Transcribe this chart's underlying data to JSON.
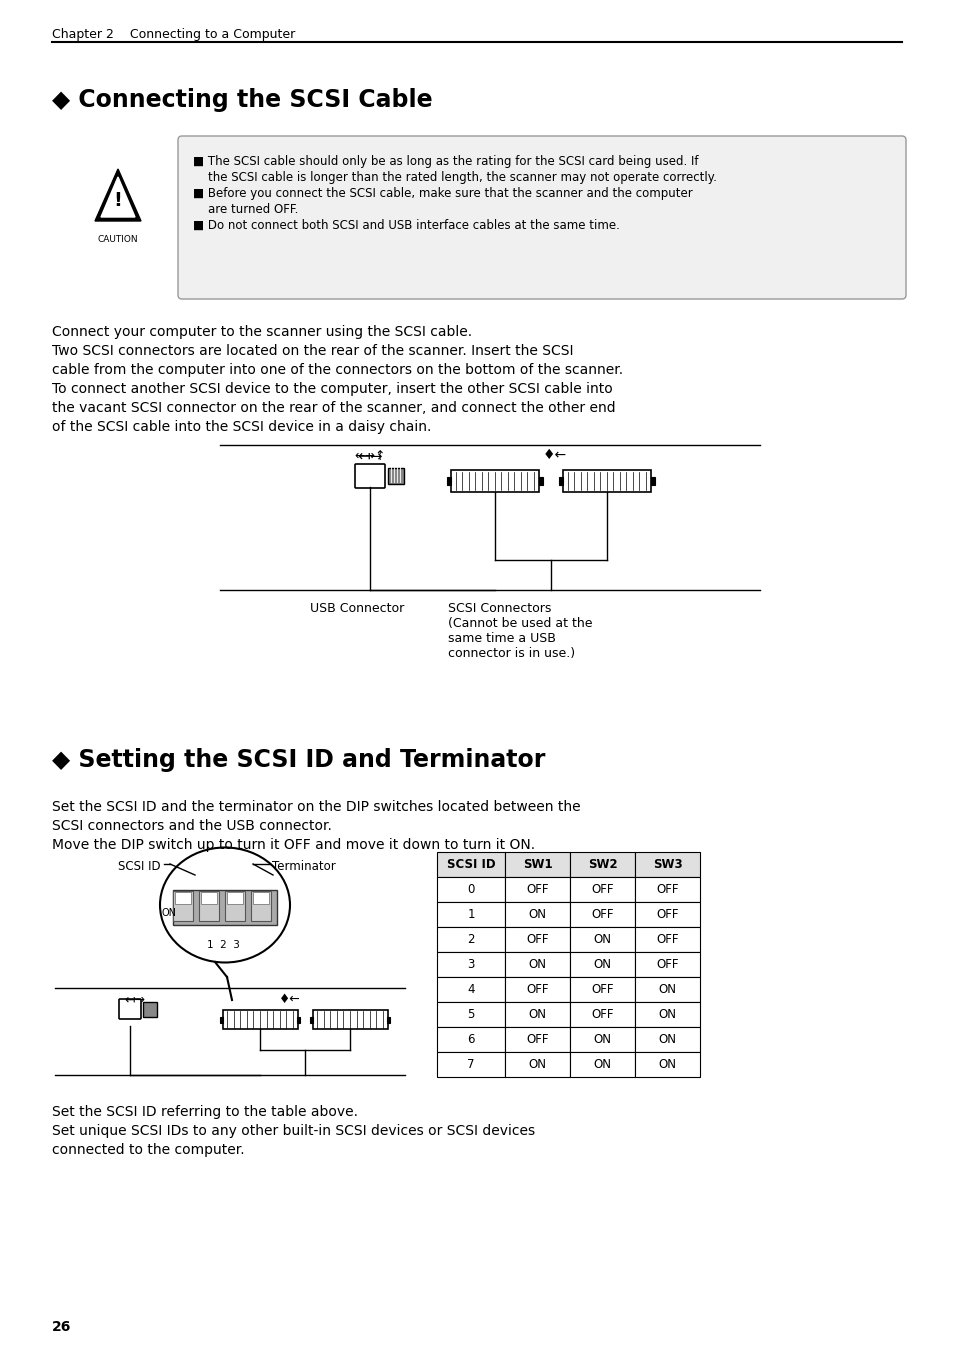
{
  "page_num": "26",
  "chapter_header": "Chapter 2    Connecting to a Computer",
  "section1_title": "◆ Connecting the SCSI Cable",
  "section2_title": "◆ Setting the SCSI ID and Terminator",
  "caution_lines": [
    "■ The SCSI cable should only be as long as the rating for the SCSI card being used. If",
    "    the SCSI cable is longer than the rated length, the scanner may not operate correctly.",
    "■ Before you connect the SCSI cable, make sure that the scanner and the computer",
    "    are turned OFF.",
    "■ Do not connect both SCSI and USB interface cables at the same time."
  ],
  "body1_lines": [
    "Connect your computer to the scanner using the SCSI cable.",
    "Two SCSI connectors are located on the rear of the scanner. Insert the SCSI",
    "cable from the computer into one of the connectors on the bottom of the scanner.",
    "To connect another SCSI device to the computer, insert the other SCSI cable into",
    "the vacant SCSI connector on the rear of the scanner, and connect the other end",
    "of the SCSI cable into the SCSI device in a daisy chain."
  ],
  "usb_label": "USB Connector",
  "scsi_label": "SCSI Connectors\n(Cannot be used at the\nsame time a USB\nconnector is in use.)",
  "body2_lines": [
    "Set the SCSI ID and the terminator on the DIP switches located between the",
    "SCSI connectors and the USB connector.",
    "Move the DIP switch up to turn it OFF and move it down to turn it ON."
  ],
  "body3_lines": [
    "Set the SCSI ID referring to the table above.",
    "Set unique SCSI IDs to any other built-in SCSI devices or SCSI devices",
    "connected to the computer."
  ],
  "scsi_id_label": "SCSI ID",
  "terminator_label": "Terminator",
  "on_label": "ON",
  "switch_numbers": "1  2  3",
  "table_headers": [
    "SCSI ID",
    "SW1",
    "SW2",
    "SW3"
  ],
  "table_rows": [
    [
      "0",
      "OFF",
      "OFF",
      "OFF"
    ],
    [
      "1",
      "ON",
      "OFF",
      "OFF"
    ],
    [
      "2",
      "OFF",
      "ON",
      "OFF"
    ],
    [
      "3",
      "ON",
      "ON",
      "OFF"
    ],
    [
      "4",
      "OFF",
      "OFF",
      "ON"
    ],
    [
      "5",
      "ON",
      "OFF",
      "ON"
    ],
    [
      "6",
      "OFF",
      "ON",
      "ON"
    ],
    [
      "7",
      "ON",
      "ON",
      "ON"
    ]
  ],
  "bg_color": "#ffffff",
  "text_color": "#000000"
}
